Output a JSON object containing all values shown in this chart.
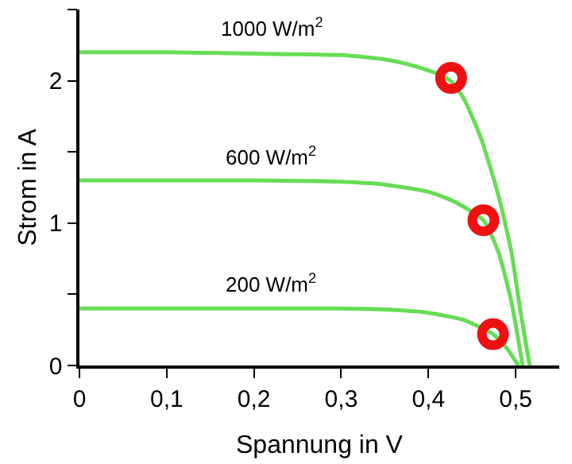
{
  "chart_data": {
    "type": "line",
    "xlabel": "Spannung in V",
    "ylabel": "Strom in A",
    "xlim": [
      0,
      0.55
    ],
    "xticks": [
      {
        "value": 0,
        "label": "0"
      },
      {
        "value": 0.1,
        "label": "0,1"
      },
      {
        "value": 0.2,
        "label": "0,2"
      },
      {
        "value": 0.3,
        "label": "0,3"
      },
      {
        "value": 0.4,
        "label": "0,4"
      },
      {
        "value": 0.5,
        "label": "0,5"
      }
    ],
    "ylim": [
      0,
      2.5
    ],
    "yticks": [
      0,
      {
        "value": 0.5,
        "label": null
      },
      1,
      {
        "value": 1.5,
        "label": null
      },
      2,
      {
        "value": 2.5,
        "label": null
      }
    ],
    "legend": false,
    "marker": "none",
    "line_style": "solid",
    "series": [
      {
        "name": "1000 W/m$^{2}$",
        "color": "#66dd55",
        "x": [
          0,
          0.1,
          0.2,
          0.3,
          0.35,
          0.38,
          0.41,
          0.425,
          0.44,
          0.46,
          0.48,
          0.495,
          0.505,
          0.516
        ],
        "values": [
          2.2,
          2.2,
          2.19,
          2.18,
          2.15,
          2.11,
          2.05,
          2.0,
          1.88,
          1.6,
          1.2,
          0.8,
          0.4,
          0
        ]
      },
      {
        "name": "600 W/m$^{2}$",
        "color": "#66dd55",
        "x": [
          0,
          0.2,
          0.3,
          0.35,
          0.4,
          0.43,
          0.463,
          0.48,
          0.495,
          0.508
        ],
        "values": [
          1.3,
          1.3,
          1.29,
          1.27,
          1.22,
          1.15,
          1.02,
          0.8,
          0.45,
          0
        ]
      },
      {
        "name": "200 W/m$^{2}$",
        "color": "#66dd55",
        "x": [
          0,
          0.3,
          0.36,
          0.4,
          0.44,
          0.474,
          0.49,
          0.503
        ],
        "values": [
          0.4,
          0.4,
          0.39,
          0.37,
          0.32,
          0.22,
          0.12,
          0
        ]
      },
      {
        "type": "scatter",
        "marker": "circle",
        "color": "#ee1111",
        "x": [
          0.426,
          0.463,
          0.474
        ],
        "values": [
          2.02,
          1.02,
          0.22
        ]
      }
    ]
  }
}
